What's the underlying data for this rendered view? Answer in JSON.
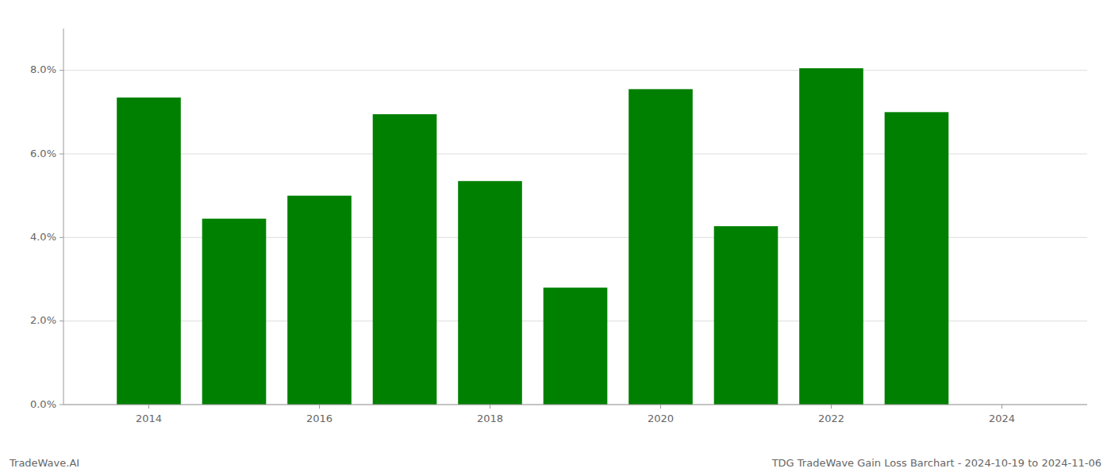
{
  "chart_data": {
    "type": "bar",
    "title": "TDG TradeWave Gain Loss Barchart - 2024-10-19 to 2024-11-06",
    "annotations": [
      "TradeWave.AI"
    ],
    "x": [
      2014,
      2015,
      2016,
      2017,
      2018,
      2019,
      2020,
      2021,
      2022,
      2023
    ],
    "values": [
      0.0735,
      0.0445,
      0.05,
      0.0695,
      0.0535,
      0.028,
      0.0755,
      0.0427,
      0.0805,
      0.07
    ],
    "color": "#008000",
    "xlim": [
      2013.0,
      2025.0
    ],
    "xticks": [
      2014,
      2016,
      2018,
      2020,
      2022,
      2024
    ],
    "ylim": [
      0.0,
      0.09
    ],
    "yticks": [
      {
        "value": 0.0,
        "label": "0.0%"
      },
      {
        "value": 0.02,
        "label": "2.0%"
      },
      {
        "value": 0.04,
        "label": "4.0%"
      },
      {
        "value": 0.06,
        "label": "6.0%"
      },
      {
        "value": 0.08,
        "label": "8.0%"
      }
    ],
    "grid": true
  }
}
